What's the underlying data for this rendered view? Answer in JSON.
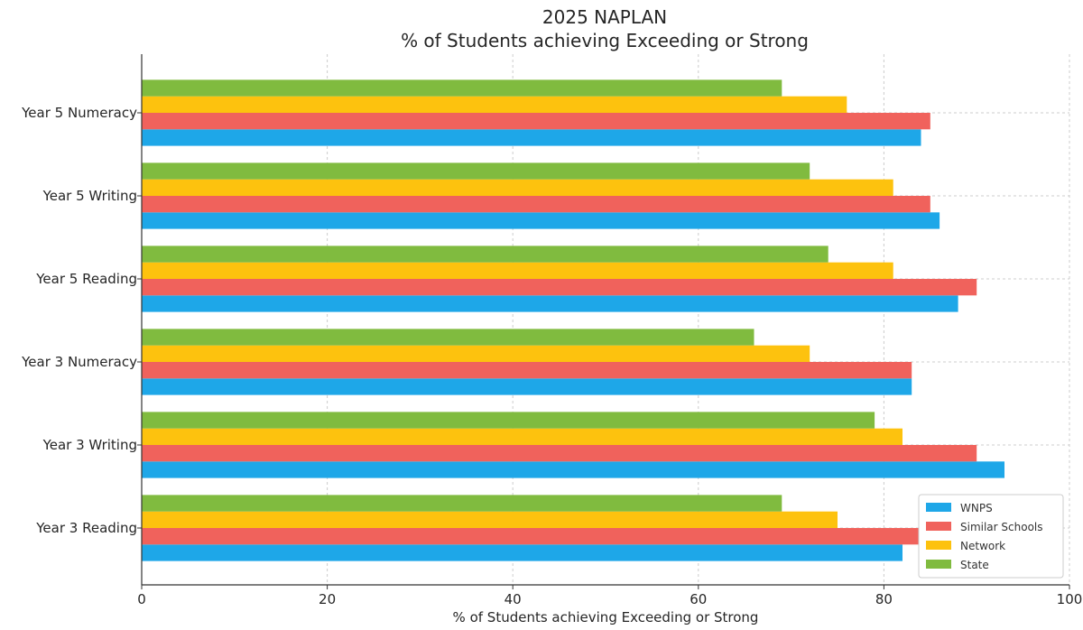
{
  "chart_data": {
    "type": "bar",
    "orientation": "horizontal",
    "title": "2025 NAPLAN",
    "subtitle": "% of Students achieving Exceeding or Strong",
    "xlabel": "% of Students achieving Exceeding or Strong",
    "ylabel": "",
    "xlim": [
      0,
      100
    ],
    "xticks": [
      0,
      20,
      40,
      60,
      80,
      100
    ],
    "grid": true,
    "legend_position": "bottom-right",
    "categories": [
      "Year 3 Reading",
      "Year 3 Writing",
      "Year 3 Numeracy",
      "Year 5 Reading",
      "Year 5 Writing",
      "Year 5 Numeracy"
    ],
    "series": [
      {
        "name": "WNPS",
        "color": "#1ea7e8",
        "values": [
          82,
          93,
          83,
          88,
          86,
          84
        ]
      },
      {
        "name": "Similar Schools",
        "color": "#f0625c",
        "values": [
          84,
          90,
          83,
          90,
          85,
          85
        ]
      },
      {
        "name": "Network",
        "color": "#fdc20e",
        "values": [
          75,
          82,
          72,
          81,
          81,
          76
        ]
      },
      {
        "name": "State",
        "color": "#80bb3f",
        "values": [
          69,
          79,
          66,
          74,
          72,
          69
        ]
      }
    ]
  }
}
